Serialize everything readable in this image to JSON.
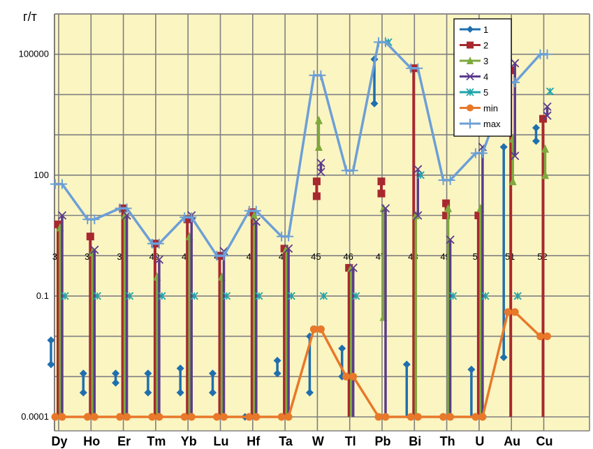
{
  "chart_data": {
    "type": "line",
    "unit_label": "г/т",
    "yscale": "log",
    "ylim": [
      0.0001,
      1000000
    ],
    "yticks": [
      {
        "value": 0.0001,
        "label": "0.0001"
      },
      {
        "value": 0.1,
        "label": "0.1"
      },
      {
        "value": 100,
        "label": "100"
      },
      {
        "value": 100000,
        "label": "100000"
      }
    ],
    "categories": [
      "Dy",
      "Ho",
      "Er",
      "Tm",
      "Yb",
      "Lu",
      "Hf",
      "Ta",
      "W",
      "Tl",
      "Pb",
      "Bi",
      "Th",
      "U",
      "Au",
      "Cu"
    ],
    "inner_labels": [
      "37",
      "38",
      "39",
      "40",
      "41",
      "42",
      "43",
      "44",
      "45",
      "46",
      "47",
      "48",
      "49",
      "50",
      "51",
      "52"
    ],
    "grid": true,
    "legend_position": "top-right",
    "colors": {
      "plot_bg": "#fbf5c2",
      "grid": "#7f7f7f",
      "s1": "#1f6fae",
      "s2": "#a8282e",
      "s3": "#7ea93c",
      "s4": "#5b3b8c",
      "s5": "#1fa3a8",
      "min": "#e8782a",
      "max": "#6c9fd6"
    },
    "series": [
      {
        "name": "1",
        "key": "s1",
        "marker": "diamond",
        "values": [
          [
            0.008,
            0.002
          ],
          [
            0.0012,
            0.0004
          ],
          [
            0.0012,
            0.0007
          ],
          [
            0.0012,
            0.0004
          ],
          [
            0.0016,
            0.0004
          ],
          [
            0.0012,
            0.0004
          ],
          [
            0.0001,
            0.0001
          ],
          [
            0.0025,
            0.0012
          ],
          [
            0.01,
            0.0004
          ],
          [
            0.005,
            0.001
          ],
          [
            75000,
            6000
          ],
          [
            0.002,
            0.0001
          ],
          [
            null,
            null
          ],
          [
            0.0015,
            0.0001
          ],
          [
            500,
            0.003
          ],
          [
            1500,
            700
          ]
        ]
      },
      {
        "name": "2",
        "key": "s2",
        "marker": "square",
        "values": [
          [
            6,
            0.0001
          ],
          [
            3,
            0.0001
          ],
          [
            15,
            0.0001
          ],
          [
            2,
            0.0001
          ],
          [
            8,
            0.0001
          ],
          [
            1,
            0.0001
          ],
          [
            12,
            0.0001
          ],
          [
            1.5,
            0.0001
          ],
          [
            70,
            30
          ],
          [
            0.5,
            0.0001
          ],
          [
            70,
            35
          ],
          [
            45000,
            0.0001
          ],
          [
            20,
            10
          ],
          [
            10,
            0.0001
          ],
          [
            40000,
            0.0001
          ],
          [
            2500,
            0.0001
          ]
        ]
      },
      {
        "name": "3",
        "key": "s3",
        "marker": "triangle",
        "values": [
          [
            5,
            0.0001
          ],
          [
            1.2,
            0.0001
          ],
          [
            10,
            0.0001
          ],
          [
            0.3,
            0.0001
          ],
          [
            3,
            0.0001
          ],
          [
            0.3,
            0.0001
          ],
          [
            10,
            0.0001
          ],
          [
            1.5,
            0.0001
          ],
          [
            2300,
            500
          ],
          [
            0.5,
            0.0001
          ],
          [
            15,
            0.03
          ],
          [
            10,
            0.0001
          ],
          [
            15,
            0.0001
          ],
          [
            15,
            0.0001
          ],
          [
            800,
            70
          ],
          [
            450,
            100
          ]
        ]
      },
      {
        "name": "4",
        "key": "s4",
        "marker": "x",
        "values": [
          [
            10,
            0.0001
          ],
          [
            1.4,
            0.0001
          ],
          [
            10,
            0.0001
          ],
          [
            0.8,
            0.0001
          ],
          [
            10,
            0.0001
          ],
          [
            1.3,
            0.0001
          ],
          [
            7,
            0.0001
          ],
          [
            1.5,
            0.0001
          ],
          [
            200,
            120
          ],
          [
            0.5,
            0.0001
          ],
          [
            15,
            0.0001
          ],
          [
            140,
            10
          ],
          [
            2.5,
            0.0001
          ],
          [
            500,
            0.0001
          ],
          [
            60000,
            300
          ],
          [
            5000,
            3000
          ]
        ]
      },
      {
        "name": "5",
        "key": "s5",
        "marker": "star",
        "values": [
          [
            0.1,
            0.1
          ],
          [
            0.1,
            0.1
          ],
          [
            0.1,
            0.1
          ],
          [
            0.1,
            0.1
          ],
          [
            0.1,
            0.1
          ],
          [
            0.1,
            0.1
          ],
          [
            0.1,
            0.1
          ],
          [
            0.1,
            0.1
          ],
          [
            0.1,
            0.1
          ],
          [
            0.1,
            0.1
          ],
          [
            200000,
            200000
          ],
          [
            100,
            100
          ],
          [
            0.1,
            0.1
          ],
          [
            0.1,
            0.1
          ],
          [
            0.1,
            0.1
          ],
          [
            12000,
            12000
          ]
        ]
      },
      {
        "name": "min",
        "key": "min",
        "marker": "circle",
        "values": [
          0.0001,
          0.0001,
          0.0001,
          0.0001,
          0.0001,
          0.0001,
          0.0001,
          0.0001,
          0.015,
          0.001,
          0.0001,
          0.0001,
          0.0001,
          0.0001,
          0.04,
          0.01
        ]
      },
      {
        "name": "max",
        "key": "max",
        "marker": "plus",
        "values": [
          60,
          8,
          15,
          2,
          9,
          1,
          13,
          3,
          30000,
          130,
          200000,
          45000,
          75,
          350,
          20000,
          100000
        ]
      }
    ]
  }
}
